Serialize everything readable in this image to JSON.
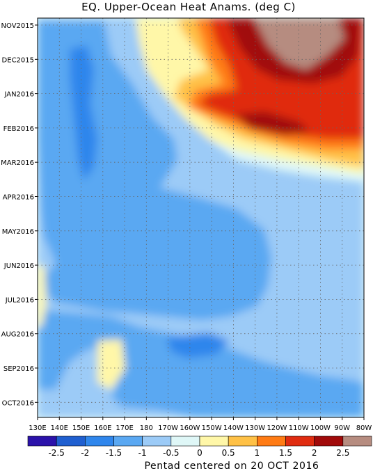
{
  "chart_data": {
    "type": "heatmap",
    "title": "EQ. Upper-Ocean Heat Anams. (deg C)",
    "footer": "Pentad centered on 20 OCT 2016",
    "xlabel": "",
    "ylabel": "",
    "x_ticks": [
      "130E",
      "140E",
      "150E",
      "160E",
      "170E",
      "180",
      "170W",
      "160W",
      "150W",
      "140W",
      "130W",
      "120W",
      "110W",
      "100W",
      "90W",
      "80W"
    ],
    "y_ticks": [
      "NOV2015",
      "DEC2015",
      "JAN2016",
      "FEB2016",
      "MAR2016",
      "APR2016",
      "MAY2016",
      "JUN2016",
      "JUL2016",
      "AUG2016",
      "SEP2016",
      "OCT2016"
    ],
    "colorbar": {
      "labels": [
        "-2.5",
        "-2",
        "-1.5",
        "-1",
        "-0.5",
        "0",
        "0.5",
        "1",
        "1.5",
        "2",
        "2.5"
      ],
      "colors": [
        "#2b12aa",
        "#1f5fd0",
        "#2f86ec",
        "#5aa8f2",
        "#9ccbf7",
        "#dff7f7",
        "#fff7a8",
        "#ffc146",
        "#ff7b14",
        "#e02c10",
        "#a10a0a",
        "#b68c80"
      ]
    },
    "grid": true
  }
}
